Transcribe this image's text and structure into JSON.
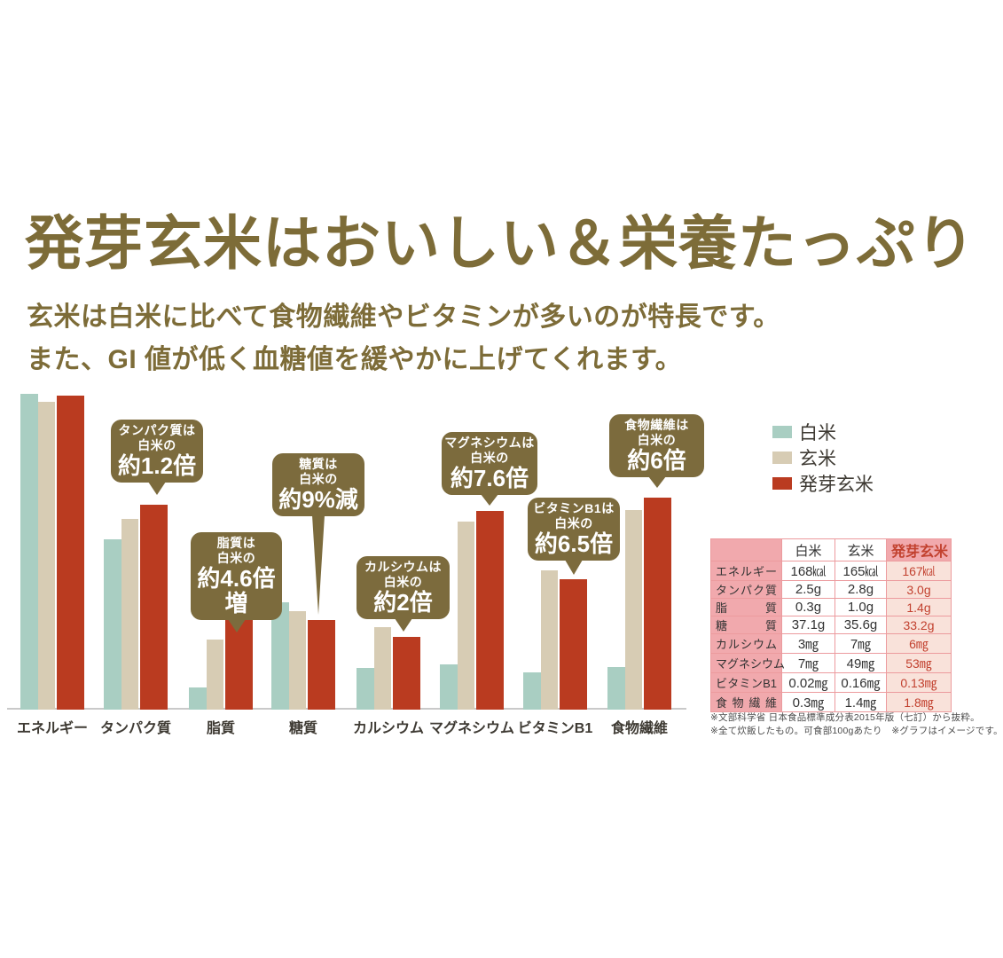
{
  "header": {
    "title": "発芽玄米はおいしい＆栄養たっぷり",
    "subtitle_line1": "玄米は白米に比べて食物繊維やビタミンが多いのが特長です。",
    "subtitle_line2": "また、GI 値が低く血糖値を緩やかに上げてくれます。"
  },
  "colors": {
    "title_olive": "#7d6c38",
    "callout_bg": "#7c6b3d",
    "white_rice": "#a9cec2",
    "brown_rice": "#d7ccb4",
    "germinated_brown_rice": "#ba3b20",
    "axis_line": "#c9c9c9",
    "label_ink": "#3e3a33",
    "table_border": "#ec9b9e",
    "table_pink": "#f1a9ad",
    "table_pink_light": "#f9e2da",
    "table_red_text": "#c2412f",
    "footnote_gray": "#4d4d4d"
  },
  "legend": {
    "items": [
      {
        "label": "白米",
        "color_key": "white_rice"
      },
      {
        "label": "玄米",
        "color_key": "brown_rice"
      },
      {
        "label": "発芽玄米",
        "color_key": "germinated_brown_rice"
      }
    ]
  },
  "chart_data": {
    "type": "bar",
    "title": "",
    "xlabel": "",
    "ylabel": "",
    "grid": false,
    "legend_position": "right",
    "categories": [
      "エネルギー",
      "タンパク質",
      "脂質",
      "糖質",
      "カルシウム",
      "マグネシウム",
      "ビタミンB1",
      "食物繊維"
    ],
    "units": [
      "kcal",
      "g",
      "g",
      "g",
      "mg",
      "mg",
      "mg",
      "mg"
    ],
    "series": [
      {
        "name": "白米",
        "color_key": "white_rice",
        "values": [
          168,
          2.5,
          0.3,
          37.1,
          3,
          7,
          0.02,
          0.3
        ],
        "display_heights_pct": [
          97.3,
          52.5,
          6.8,
          33.1,
          12.8,
          13.9,
          11.5,
          13.1
        ]
      },
      {
        "name": "玄米",
        "color_key": "brown_rice",
        "values": [
          165,
          2.8,
          1.0,
          35.6,
          7,
          49,
          0.16,
          1.4
        ],
        "display_heights_pct": [
          94.8,
          58.7,
          21.6,
          30.3,
          25.4,
          57.9,
          42.9,
          61.5
        ]
      },
      {
        "name": "発芽玄米",
        "color_key": "germinated_brown_rice",
        "values": [
          167,
          3.0,
          1.4,
          33.2,
          6,
          53,
          0.13,
          1.8
        ],
        "display_heights_pct": [
          96.7,
          63.1,
          30.3,
          27.6,
          22.4,
          61.2,
          40.2,
          65.3
        ]
      }
    ],
    "scale_note": "グラフはイメージです"
  },
  "callouts": [
    {
      "lines": [
        "タンパク質は",
        "白米の",
        "約1.2倍"
      ]
    },
    {
      "lines": [
        "脂質は",
        "白米の",
        "約4.6倍増"
      ]
    },
    {
      "lines": [
        "糖質は",
        "白米の",
        "約9%減"
      ]
    },
    {
      "lines": [
        "カルシウムは",
        "白米の",
        "約2倍"
      ]
    },
    {
      "lines": [
        "マグネシウムは",
        "白米の",
        "約7.6倍"
      ]
    },
    {
      "lines": [
        "ビタミンB1は",
        "白米の",
        "約6.5倍"
      ]
    },
    {
      "lines": [
        "食物繊維は",
        "白米の",
        "約6倍"
      ]
    }
  ],
  "table": {
    "headers": [
      "",
      "白米",
      "玄米",
      "発芽玄米"
    ],
    "rows": [
      [
        "エネルギー",
        "168㎉",
        "165㎉",
        "167㎉"
      ],
      [
        "タンパク質",
        "2.5g",
        "2.8g",
        "3.0g"
      ],
      [
        "脂　質",
        "0.3g",
        "1.0g",
        "1.4g"
      ],
      [
        "糖　質",
        "37.1g",
        "35.6g",
        "33.2g"
      ],
      [
        "カルシウム",
        "3㎎",
        "7㎎",
        "6㎎"
      ],
      [
        "マグネシウム",
        "7㎎",
        "49㎎",
        "53㎎"
      ],
      [
        "ビタミンB1",
        "0.02㎎",
        "0.16㎎",
        "0.13㎎"
      ],
      [
        "食物繊維",
        "0.3㎎",
        "1.4㎎",
        "1.8㎎"
      ]
    ]
  },
  "footnotes": [
    "※文部科学省 日本食品標準成分表2015年版（七訂）から抜粋。",
    "※全て炊飯したもの。可食部100gあたり　※グラフはイメージです。"
  ]
}
